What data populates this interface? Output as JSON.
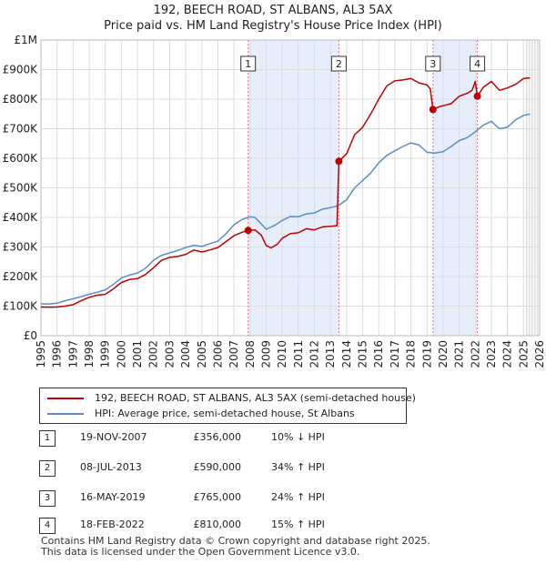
{
  "header": {
    "title": "192, BEECH ROAD, ST ALBANS, AL3 5AX",
    "subtitle": "Price paid vs. HM Land Registry's House Price Index (HPI)"
  },
  "colors": {
    "property": "#c00000",
    "hpi": "#5b8cc8",
    "shade": "#e6eefb",
    "grid": "#dddddd",
    "vline": "#e07090"
  },
  "chart_data": {
    "type": "line",
    "title": "192, BEECH ROAD, ST ALBANS, AL3 5AX",
    "subtitle": "Price paid vs. HM Land Registry's House Price Index (HPI)",
    "xlim": [
      1995,
      2026
    ],
    "ylim": [
      0,
      1000000
    ],
    "x_ticks": [
      1995,
      1996,
      1997,
      1998,
      1999,
      2000,
      2001,
      2002,
      2003,
      2004,
      2005,
      2006,
      2007,
      2008,
      2009,
      2010,
      2011,
      2012,
      2013,
      2014,
      2015,
      2016,
      2017,
      2018,
      2019,
      2020,
      2021,
      2022,
      2023,
      2024,
      2025,
      2026
    ],
    "y_ticks": [
      0,
      100000,
      200000,
      300000,
      400000,
      500000,
      600000,
      700000,
      800000,
      900000,
      1000000
    ],
    "y_tick_labels": [
      "£0",
      "£100K",
      "£200K",
      "£300K",
      "£400K",
      "£500K",
      "£600K",
      "£700K",
      "£800K",
      "£900K",
      "£1M"
    ],
    "grid": true,
    "shaded_ranges": [
      [
        2007.88,
        2013.52
      ],
      [
        2019.37,
        2022.13
      ]
    ],
    "projection_start": 2025.2,
    "series": [
      {
        "name": "192, BEECH ROAD, ST ALBANS, AL3 5AX (semi-detached house)",
        "points": [
          [
            1995,
            97000
          ],
          [
            1995.5,
            96000
          ],
          [
            1996,
            97000
          ],
          [
            1996.5,
            100000
          ],
          [
            1997,
            105000
          ],
          [
            1997.5,
            118000
          ],
          [
            1998,
            130000
          ],
          [
            1998.5,
            137000
          ],
          [
            1999,
            140000
          ],
          [
            1999.5,
            158000
          ],
          [
            2000,
            180000
          ],
          [
            2000.5,
            190000
          ],
          [
            2001,
            193000
          ],
          [
            2001.5,
            207000
          ],
          [
            2002,
            230000
          ],
          [
            2002.5,
            255000
          ],
          [
            2003,
            265000
          ],
          [
            2003.5,
            268000
          ],
          [
            2004,
            275000
          ],
          [
            2004.5,
            290000
          ],
          [
            2005,
            283000
          ],
          [
            2005.5,
            290000
          ],
          [
            2006,
            298000
          ],
          [
            2006.5,
            318000
          ],
          [
            2007,
            338000
          ],
          [
            2007.5,
            350000
          ],
          [
            2007.88,
            356000
          ],
          [
            2008.3,
            358000
          ],
          [
            2008.7,
            340000
          ],
          [
            2009,
            305000
          ],
          [
            2009.3,
            297000
          ],
          [
            2009.7,
            310000
          ],
          [
            2010,
            330000
          ],
          [
            2010.5,
            345000
          ],
          [
            2011,
            348000
          ],
          [
            2011.5,
            362000
          ],
          [
            2012,
            358000
          ],
          [
            2012.5,
            368000
          ],
          [
            2013,
            370000
          ],
          [
            2013.4,
            372000
          ],
          [
            2013.52,
            590000
          ],
          [
            2014,
            615000
          ],
          [
            2014.5,
            680000
          ],
          [
            2015,
            705000
          ],
          [
            2015.5,
            750000
          ],
          [
            2016,
            800000
          ],
          [
            2016.5,
            845000
          ],
          [
            2017,
            862000
          ],
          [
            2017.5,
            865000
          ],
          [
            2018,
            870000
          ],
          [
            2018.5,
            855000
          ],
          [
            2019,
            848000
          ],
          [
            2019.2,
            835000
          ],
          [
            2019.37,
            765000
          ],
          [
            2019.8,
            775000
          ],
          [
            2020,
            778000
          ],
          [
            2020.5,
            785000
          ],
          [
            2021,
            810000
          ],
          [
            2021.5,
            820000
          ],
          [
            2021.8,
            830000
          ],
          [
            2022,
            860000
          ],
          [
            2022.13,
            810000
          ],
          [
            2022.5,
            840000
          ],
          [
            2023,
            860000
          ],
          [
            2023.5,
            830000
          ],
          [
            2024,
            838000
          ],
          [
            2024.5,
            850000
          ],
          [
            2025,
            870000
          ],
          [
            2025.4,
            872000
          ]
        ],
        "sales": [
          {
            "label": "1",
            "x": 2007.88,
            "y": 356000
          },
          {
            "label": "2",
            "x": 2013.52,
            "y": 590000
          },
          {
            "label": "3",
            "x": 2019.37,
            "y": 765000
          },
          {
            "label": "4",
            "x": 2022.13,
            "y": 810000
          }
        ]
      },
      {
        "name": "HPI: Average price, semi-detached house, St Albans",
        "points": [
          [
            1995,
            108000
          ],
          [
            1995.5,
            107000
          ],
          [
            1996,
            110000
          ],
          [
            1996.5,
            118000
          ],
          [
            1997,
            125000
          ],
          [
            1997.5,
            132000
          ],
          [
            1998,
            140000
          ],
          [
            1998.5,
            147000
          ],
          [
            1999,
            155000
          ],
          [
            1999.5,
            173000
          ],
          [
            2000,
            195000
          ],
          [
            2000.5,
            205000
          ],
          [
            2001,
            212000
          ],
          [
            2001.5,
            228000
          ],
          [
            2002,
            255000
          ],
          [
            2002.5,
            272000
          ],
          [
            2003,
            280000
          ],
          [
            2003.5,
            288000
          ],
          [
            2004,
            298000
          ],
          [
            2004.5,
            306000
          ],
          [
            2005,
            302000
          ],
          [
            2005.5,
            311000
          ],
          [
            2006,
            320000
          ],
          [
            2006.5,
            345000
          ],
          [
            2007,
            375000
          ],
          [
            2007.5,
            393000
          ],
          [
            2008,
            402000
          ],
          [
            2008.3,
            400000
          ],
          [
            2008.7,
            378000
          ],
          [
            2009,
            360000
          ],
          [
            2009.5,
            372000
          ],
          [
            2010,
            390000
          ],
          [
            2010.5,
            403000
          ],
          [
            2011,
            402000
          ],
          [
            2011.5,
            412000
          ],
          [
            2012,
            415000
          ],
          [
            2012.5,
            428000
          ],
          [
            2013,
            433000
          ],
          [
            2013.5,
            440000
          ],
          [
            2014,
            460000
          ],
          [
            2014.5,
            500000
          ],
          [
            2015,
            525000
          ],
          [
            2015.5,
            550000
          ],
          [
            2016,
            585000
          ],
          [
            2016.5,
            610000
          ],
          [
            2017,
            625000
          ],
          [
            2017.5,
            640000
          ],
          [
            2018,
            652000
          ],
          [
            2018.5,
            645000
          ],
          [
            2019,
            620000
          ],
          [
            2019.5,
            618000
          ],
          [
            2020,
            622000
          ],
          [
            2020.5,
            640000
          ],
          [
            2021,
            660000
          ],
          [
            2021.5,
            670000
          ],
          [
            2022,
            690000
          ],
          [
            2022.5,
            712000
          ],
          [
            2023,
            725000
          ],
          [
            2023.5,
            700000
          ],
          [
            2024,
            705000
          ],
          [
            2024.5,
            730000
          ],
          [
            2025,
            745000
          ],
          [
            2025.4,
            750000
          ]
        ]
      }
    ]
  },
  "legend": {
    "property": "192, BEECH ROAD, ST ALBANS, AL3 5AX (semi-detached house)",
    "hpi": "HPI: Average price, semi-detached house, St Albans"
  },
  "sales_table": [
    {
      "num": "1",
      "date": "19-NOV-2007",
      "price": "£356,000",
      "hpi": "10% ↓ HPI"
    },
    {
      "num": "2",
      "date": "08-JUL-2013",
      "price": "£590,000",
      "hpi": "34% ↑ HPI"
    },
    {
      "num": "3",
      "date": "16-MAY-2019",
      "price": "£765,000",
      "hpi": "24% ↑ HPI"
    },
    {
      "num": "4",
      "date": "18-FEB-2022",
      "price": "£810,000",
      "hpi": "15% ↑ HPI"
    }
  ],
  "footer": {
    "line1": "Contains HM Land Registry data © Crown copyright and database right 2025.",
    "line2": "This data is licensed under the Open Government Licence v3.0."
  }
}
